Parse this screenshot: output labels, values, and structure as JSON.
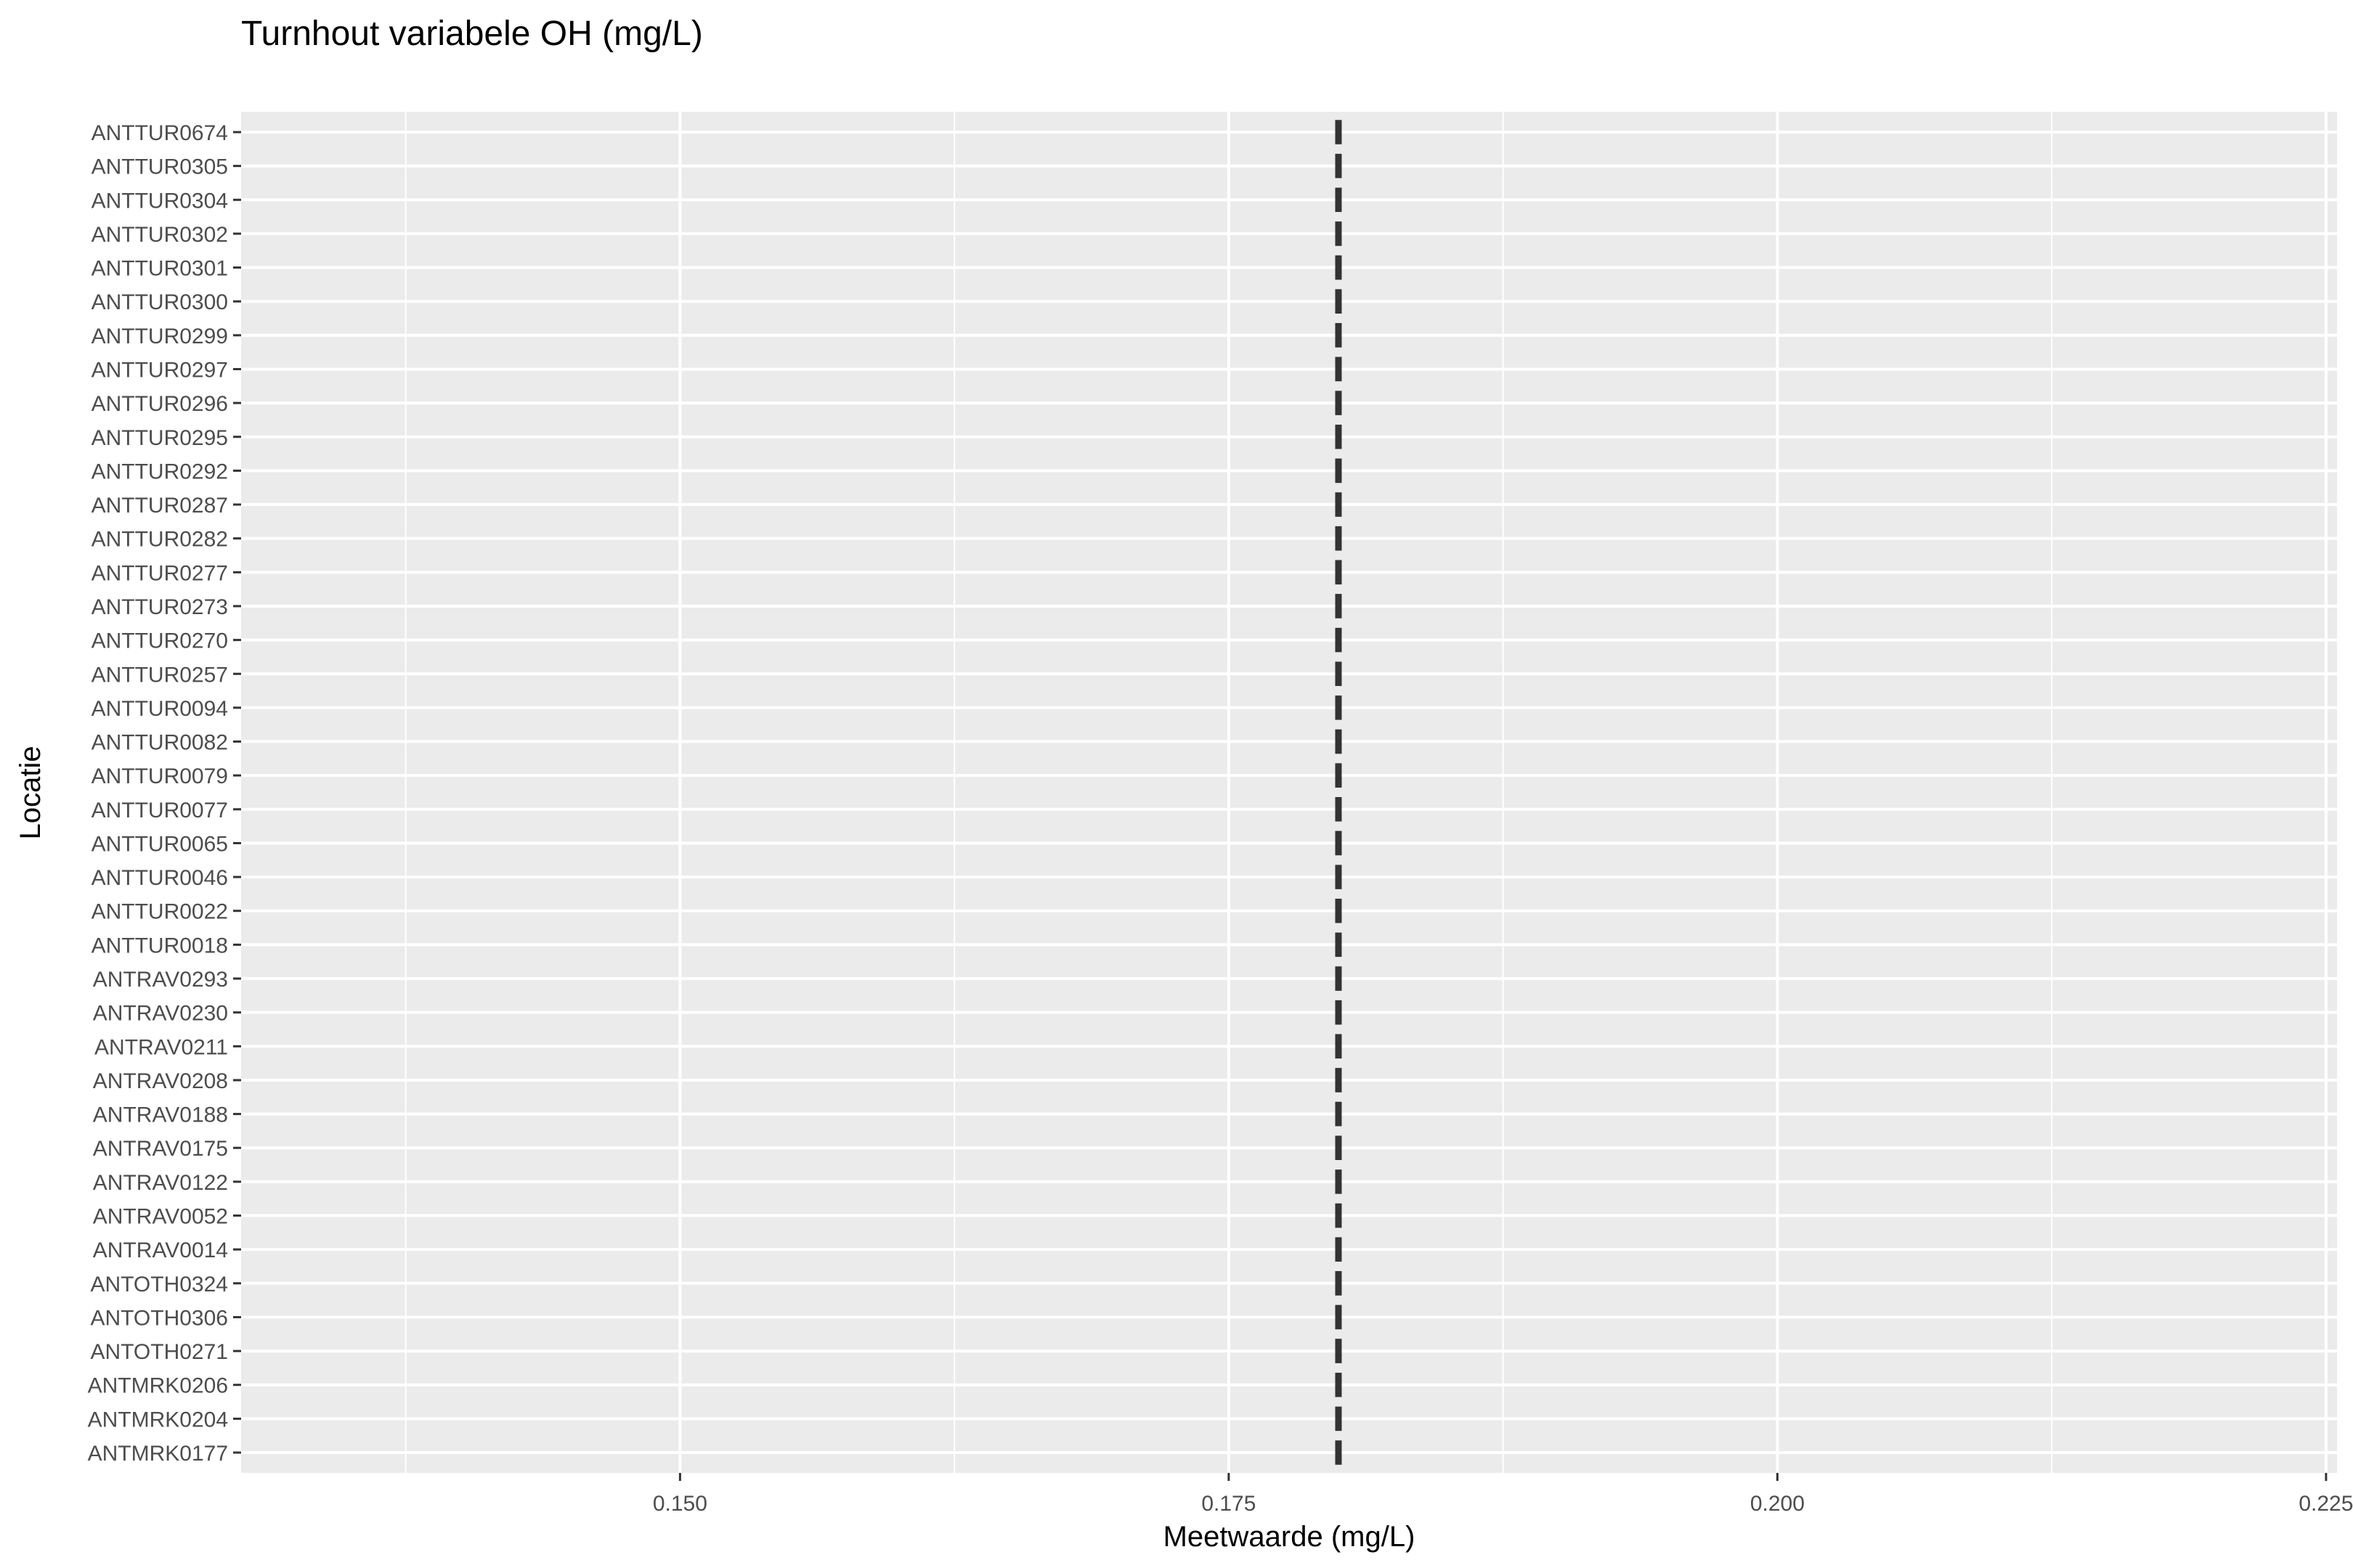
{
  "chart_data": {
    "type": "scatter",
    "title": "Turnhout variabele OH (mg/L)",
    "xlabel": "Meetwaarde (mg/L)",
    "ylabel": "Locatie",
    "x_tick_labels": [
      "0.150",
      "0.175",
      "0.200",
      "0.225"
    ],
    "x_ticks": [
      0.15,
      0.175,
      0.2,
      0.225
    ],
    "xlim": [
      0.13,
      0.2255
    ],
    "grid": true,
    "categories": [
      "ANTMRK0177",
      "ANTMRK0204",
      "ANTMRK0206",
      "ANTOTH0271",
      "ANTOTH0306",
      "ANTOTH0324",
      "ANTRAV0014",
      "ANTRAV0052",
      "ANTRAV0122",
      "ANTRAV0175",
      "ANTRAV0188",
      "ANTRAV0208",
      "ANTRAV0211",
      "ANTRAV0230",
      "ANTRAV0293",
      "ANTTUR0018",
      "ANTTUR0022",
      "ANTTUR0046",
      "ANTTUR0065",
      "ANTTUR0077",
      "ANTTUR0079",
      "ANTTUR0082",
      "ANTTUR0094",
      "ANTTUR0257",
      "ANTTUR0270",
      "ANTTUR0273",
      "ANTTUR0277",
      "ANTTUR0282",
      "ANTTUR0287",
      "ANTTUR0292",
      "ANTTUR0295",
      "ANTTUR0296",
      "ANTTUR0297",
      "ANTTUR0299",
      "ANTTUR0300",
      "ANTTUR0301",
      "ANTTUR0302",
      "ANTTUR0304",
      "ANTTUR0305",
      "ANTTUR0674"
    ],
    "values": [
      0.18,
      0.18,
      0.18,
      0.18,
      0.18,
      0.18,
      0.18,
      0.18,
      0.18,
      0.18,
      0.18,
      0.18,
      0.18,
      0.18,
      0.18,
      0.18,
      0.18,
      0.18,
      0.18,
      0.18,
      0.18,
      0.18,
      0.18,
      0.18,
      0.18,
      0.18,
      0.18,
      0.18,
      0.18,
      0.18,
      0.18,
      0.18,
      0.18,
      0.18,
      0.18,
      0.18,
      0.18,
      0.18,
      0.18,
      0.18
    ],
    "colors": {
      "panel": "#ebebeb",
      "grid": "#ffffff",
      "mark": "#333333",
      "tick": "#4d4d4d"
    }
  }
}
